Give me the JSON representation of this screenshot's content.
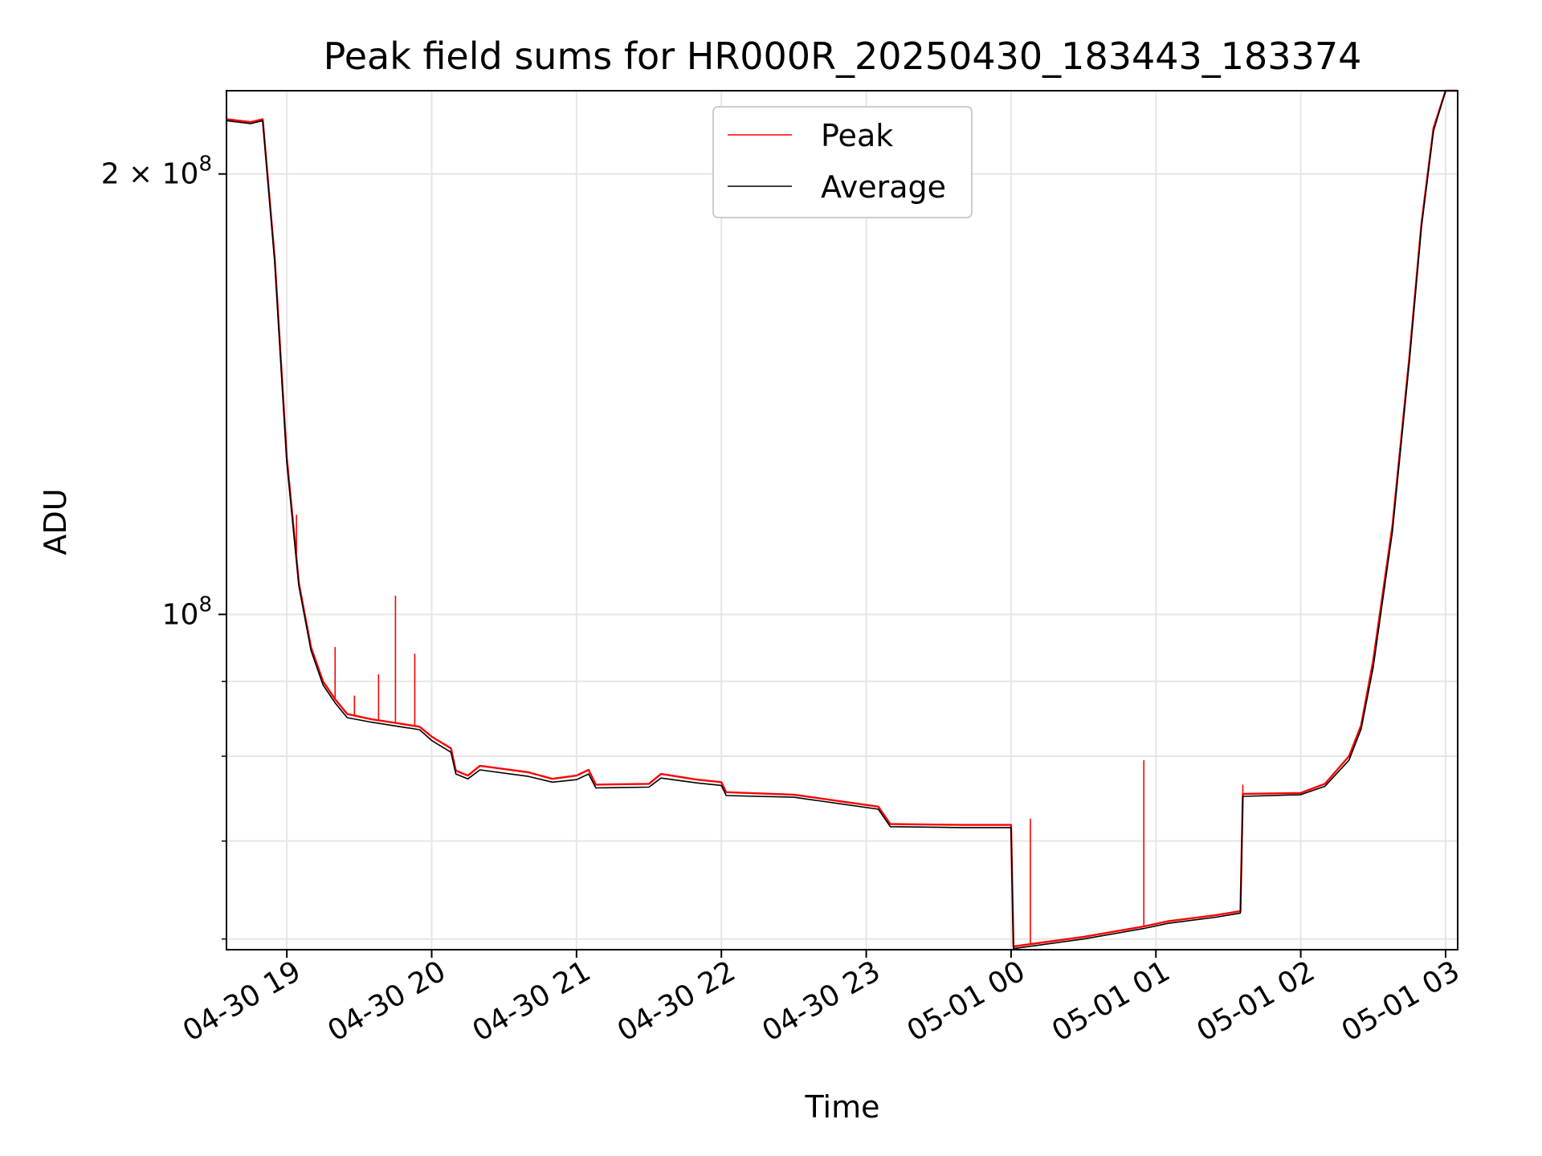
{
  "chart_data": {
    "type": "line",
    "title": "Peak field sums for HR000R_20250430_183443_183374",
    "xlabel": "Time",
    "ylabel": "ADU",
    "x_unit": "time",
    "y_scale": "log",
    "xlim": [
      "2025-04-30 18:35",
      "2025-05-01 03:05"
    ],
    "ylim": [
      59000000,
      228000000
    ],
    "x_ticks": [
      {
        "value": "2025-04-30 19:00",
        "label": "04-30 19"
      },
      {
        "value": "2025-04-30 20:00",
        "label": "04-30 20"
      },
      {
        "value": "2025-04-30 21:00",
        "label": "04-30 21"
      },
      {
        "value": "2025-04-30 22:00",
        "label": "04-30 22"
      },
      {
        "value": "2025-04-30 23:00",
        "label": "04-30 23"
      },
      {
        "value": "2025-05-01 00:00",
        "label": "05-01 00"
      },
      {
        "value": "2025-05-01 01:00",
        "label": "05-01 01"
      },
      {
        "value": "2025-05-01 02:00",
        "label": "05-01 02"
      },
      {
        "value": "2025-05-01 03:00",
        "label": "05-01 03"
      }
    ],
    "y_major_ticks": [
      {
        "value": 100000000,
        "base": "10",
        "exp": "8",
        "prefix": ""
      },
      {
        "value": 200000000,
        "base": "10",
        "exp": "8",
        "prefix": "2 × "
      }
    ],
    "y_minor_ticks": [
      60000000,
      70000000,
      80000000,
      90000000
    ],
    "grid": true,
    "legend_position": "top-center",
    "series": [
      {
        "name": "Peak",
        "color": "#ff0000",
        "points": [
          [
            "2025-04-30 18:35",
            218000000
          ],
          [
            "2025-04-30 18:45",
            217000000
          ],
          [
            "2025-04-30 18:50",
            218000000
          ],
          [
            "2025-04-30 18:55",
            175000000
          ],
          [
            "2025-04-30 19:00",
            128000000
          ],
          [
            "2025-04-30 19:05",
            105000000
          ],
          [
            "2025-04-30 19:10",
            95000000
          ],
          [
            "2025-04-30 19:15",
            90000000
          ],
          [
            "2025-04-30 19:20",
            87500000
          ],
          [
            "2025-04-30 19:25",
            85500000
          ],
          [
            "2025-04-30 19:35",
            84800000
          ],
          [
            "2025-04-30 19:45",
            84300000
          ],
          [
            "2025-04-30 19:55",
            83800000
          ],
          [
            "2025-04-30 20:00",
            82500000
          ],
          [
            "2025-04-30 20:08",
            81000000
          ],
          [
            "2025-04-30 20:10",
            78200000
          ],
          [
            "2025-04-30 20:15",
            77600000
          ],
          [
            "2025-04-30 20:20",
            78800000
          ],
          [
            "2025-04-30 20:40",
            78000000
          ],
          [
            "2025-04-30 20:50",
            77200000
          ],
          [
            "2025-04-30 21:00",
            77600000
          ],
          [
            "2025-04-30 21:05",
            78300000
          ],
          [
            "2025-04-30 21:08",
            76500000
          ],
          [
            "2025-04-30 21:30",
            76600000
          ],
          [
            "2025-04-30 21:35",
            77800000
          ],
          [
            "2025-04-30 21:50",
            77100000
          ],
          [
            "2025-04-30 22:00",
            76800000
          ],
          [
            "2025-04-30 22:02",
            75600000
          ],
          [
            "2025-04-30 22:30",
            75300000
          ],
          [
            "2025-04-30 22:50",
            74500000
          ],
          [
            "2025-04-30 23:05",
            73900000
          ],
          [
            "2025-04-30 23:10",
            71900000
          ],
          [
            "2025-04-30 23:40",
            71800000
          ],
          [
            "2025-05-01 00:00",
            71800000
          ],
          [
            "2025-05-01 00:01",
            59300000
          ],
          [
            "2025-05-01 00:30",
            60200000
          ],
          [
            "2025-05-01 00:55",
            61200000
          ],
          [
            "2025-05-01 01:05",
            61700000
          ],
          [
            "2025-05-01 01:25",
            62300000
          ],
          [
            "2025-05-01 01:35",
            62700000
          ],
          [
            "2025-05-01 01:36",
            75400000
          ],
          [
            "2025-05-01 02:00",
            75500000
          ],
          [
            "2025-05-01 02:10",
            76600000
          ],
          [
            "2025-05-01 02:20",
            80000000
          ],
          [
            "2025-05-01 02:25",
            84000000
          ],
          [
            "2025-05-01 02:30",
            93000000
          ],
          [
            "2025-05-01 02:38",
            115000000
          ],
          [
            "2025-05-01 02:45",
            150000000
          ],
          [
            "2025-05-01 02:50",
            185000000
          ],
          [
            "2025-05-01 02:55",
            215000000
          ],
          [
            "2025-05-01 03:00",
            228000000
          ],
          [
            "2025-05-01 03:05",
            228000000
          ]
        ],
        "spikes": [
          [
            "2025-04-30 19:04",
            117000000
          ],
          [
            "2025-04-30 19:20",
            95000000
          ],
          [
            "2025-04-30 19:28",
            88000000
          ],
          [
            "2025-04-30 19:38",
            91000000
          ],
          [
            "2025-04-30 19:45",
            103000000
          ],
          [
            "2025-04-30 19:53",
            94000000
          ],
          [
            "2025-05-01 00:08",
            72500000
          ],
          [
            "2025-05-01 00:55",
            79500000
          ],
          [
            "2025-05-01 01:36",
            76500000
          ]
        ]
      },
      {
        "name": "Average",
        "color": "#000000",
        "points": [
          [
            "2025-04-30 18:35",
            217500000
          ],
          [
            "2025-04-30 18:45",
            216500000
          ],
          [
            "2025-04-30 18:50",
            217500000
          ],
          [
            "2025-04-30 18:55",
            174000000
          ],
          [
            "2025-04-30 19:00",
            127000000
          ],
          [
            "2025-04-30 19:05",
            104500000
          ],
          [
            "2025-04-30 19:10",
            94500000
          ],
          [
            "2025-04-30 19:15",
            89500000
          ],
          [
            "2025-04-30 19:20",
            87000000
          ],
          [
            "2025-04-30 19:25",
            85000000
          ],
          [
            "2025-04-30 19:35",
            84400000
          ],
          [
            "2025-04-30 19:45",
            83900000
          ],
          [
            "2025-04-30 19:55",
            83400000
          ],
          [
            "2025-04-30 20:00",
            82000000
          ],
          [
            "2025-04-30 20:08",
            80500000
          ],
          [
            "2025-04-30 20:10",
            77800000
          ],
          [
            "2025-04-30 20:15",
            77200000
          ],
          [
            "2025-04-30 20:20",
            78300000
          ],
          [
            "2025-04-30 20:40",
            77500000
          ],
          [
            "2025-04-30 20:50",
            76800000
          ],
          [
            "2025-04-30 21:00",
            77100000
          ],
          [
            "2025-04-30 21:05",
            77800000
          ],
          [
            "2025-04-30 21:08",
            76100000
          ],
          [
            "2025-04-30 21:30",
            76200000
          ],
          [
            "2025-04-30 21:35",
            77300000
          ],
          [
            "2025-04-30 21:50",
            76700000
          ],
          [
            "2025-04-30 22:00",
            76400000
          ],
          [
            "2025-04-30 22:02",
            75200000
          ],
          [
            "2025-04-30 22:30",
            75000000
          ],
          [
            "2025-04-30 22:50",
            74200000
          ],
          [
            "2025-04-30 23:05",
            73600000
          ],
          [
            "2025-04-30 23:10",
            71600000
          ],
          [
            "2025-04-30 23:40",
            71500000
          ],
          [
            "2025-05-01 00:00",
            71500000
          ],
          [
            "2025-05-01 00:01",
            59100000
          ],
          [
            "2025-05-01 00:30",
            60000000
          ],
          [
            "2025-05-01 00:55",
            61000000
          ],
          [
            "2025-05-01 01:05",
            61500000
          ],
          [
            "2025-05-01 01:25",
            62100000
          ],
          [
            "2025-05-01 01:35",
            62500000
          ],
          [
            "2025-05-01 01:36",
            75100000
          ],
          [
            "2025-05-01 02:00",
            75300000
          ],
          [
            "2025-05-01 02:10",
            76300000
          ],
          [
            "2025-05-01 02:20",
            79500000
          ],
          [
            "2025-05-01 02:25",
            83500000
          ],
          [
            "2025-05-01 02:30",
            92000000
          ],
          [
            "2025-05-01 02:38",
            114000000
          ],
          [
            "2025-05-01 02:45",
            149000000
          ],
          [
            "2025-05-01 02:50",
            184000000
          ],
          [
            "2025-05-01 02:55",
            214000000
          ],
          [
            "2025-05-01 03:00",
            228000000
          ],
          [
            "2025-05-01 03:05",
            228000000
          ]
        ]
      }
    ]
  }
}
